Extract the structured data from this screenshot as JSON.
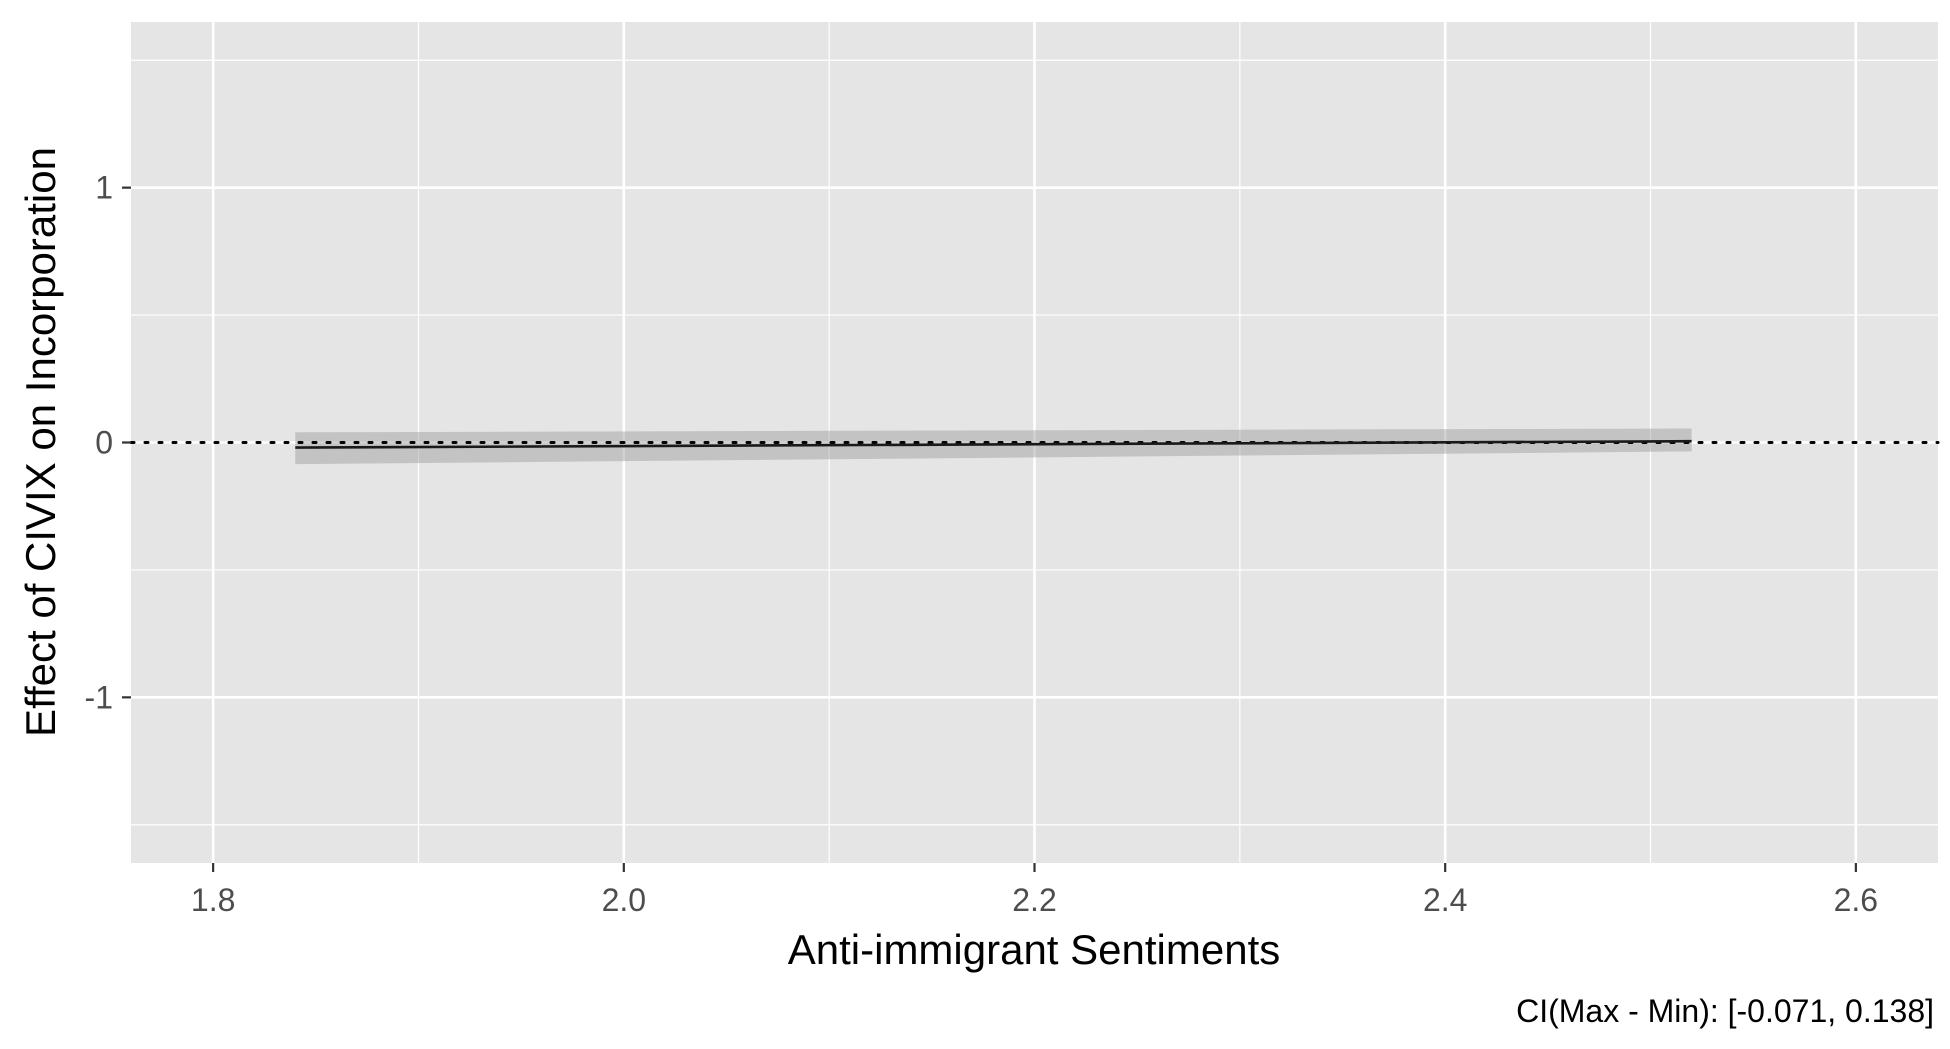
{
  "chart_data": {
    "type": "line",
    "xlabel": "Anti-immigrant Sentiments",
    "ylabel": "Effect of CIVIX on Incorporation",
    "caption": "CI(Max - Min): [-0.071, 0.138]",
    "xlim": [
      1.76,
      2.64
    ],
    "ylim": [
      -1.65,
      1.65
    ],
    "x_ticks": [
      1.8,
      2.0,
      2.2,
      2.4,
      2.6
    ],
    "x_tick_labels": [
      "1.8",
      "2.0",
      "2.2",
      "2.4",
      "2.6"
    ],
    "y_ticks": [
      -1,
      0,
      1
    ],
    "y_tick_labels": [
      "-1",
      "0",
      "1"
    ],
    "grid": true,
    "reference_line": {
      "y": 0,
      "style": "dotted"
    },
    "series": [
      {
        "x": [
          1.84,
          2.52
        ],
        "y": [
          -0.02,
          0.005
        ],
        "lower": [
          -0.085,
          -0.035
        ],
        "upper": [
          0.04,
          0.055
        ]
      }
    ],
    "colors": {
      "panel": "#e5e5e5",
      "grid": "#ffffff",
      "line": "#1a1a1a",
      "ribbon": "#999999"
    }
  }
}
